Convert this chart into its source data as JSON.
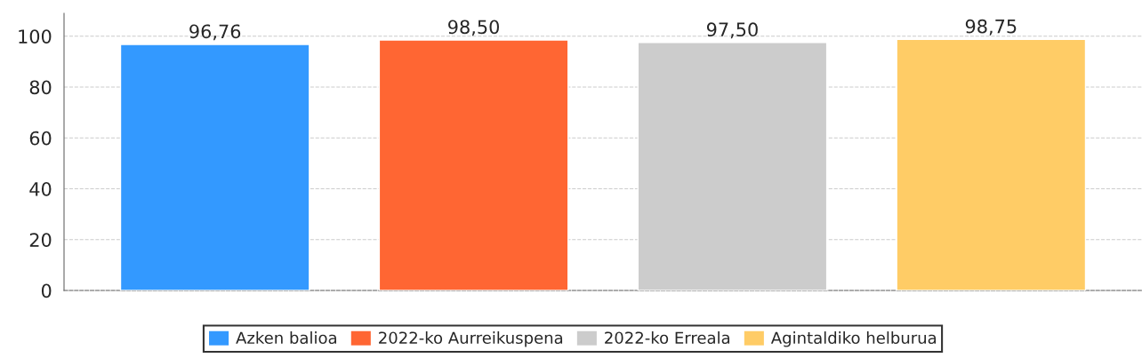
{
  "chart_data": {
    "type": "bar",
    "categories": [
      null
    ],
    "series": [
      {
        "name": "Azken balioa",
        "color": "#3399ff",
        "values": [
          96.76
        ],
        "value_labels": [
          "96,76"
        ]
      },
      {
        "name": "2022-ko Aurreikuspena",
        "color": "#ff6633",
        "values": [
          98.5
        ],
        "value_labels": [
          "98,50"
        ]
      },
      {
        "name": "2022-ko Erreala",
        "color": "#cccccc",
        "values": [
          97.5
        ],
        "value_labels": [
          "97,50"
        ]
      },
      {
        "name": "Agintaldiko helburua",
        "color": "#ffcc66",
        "values": [
          98.75
        ],
        "value_labels": [
          "98,75"
        ]
      }
    ],
    "ylim": [
      0,
      109
    ],
    "yticks": [
      0,
      20,
      40,
      60,
      80,
      100
    ],
    "grid": "y",
    "legend": "bottom"
  }
}
